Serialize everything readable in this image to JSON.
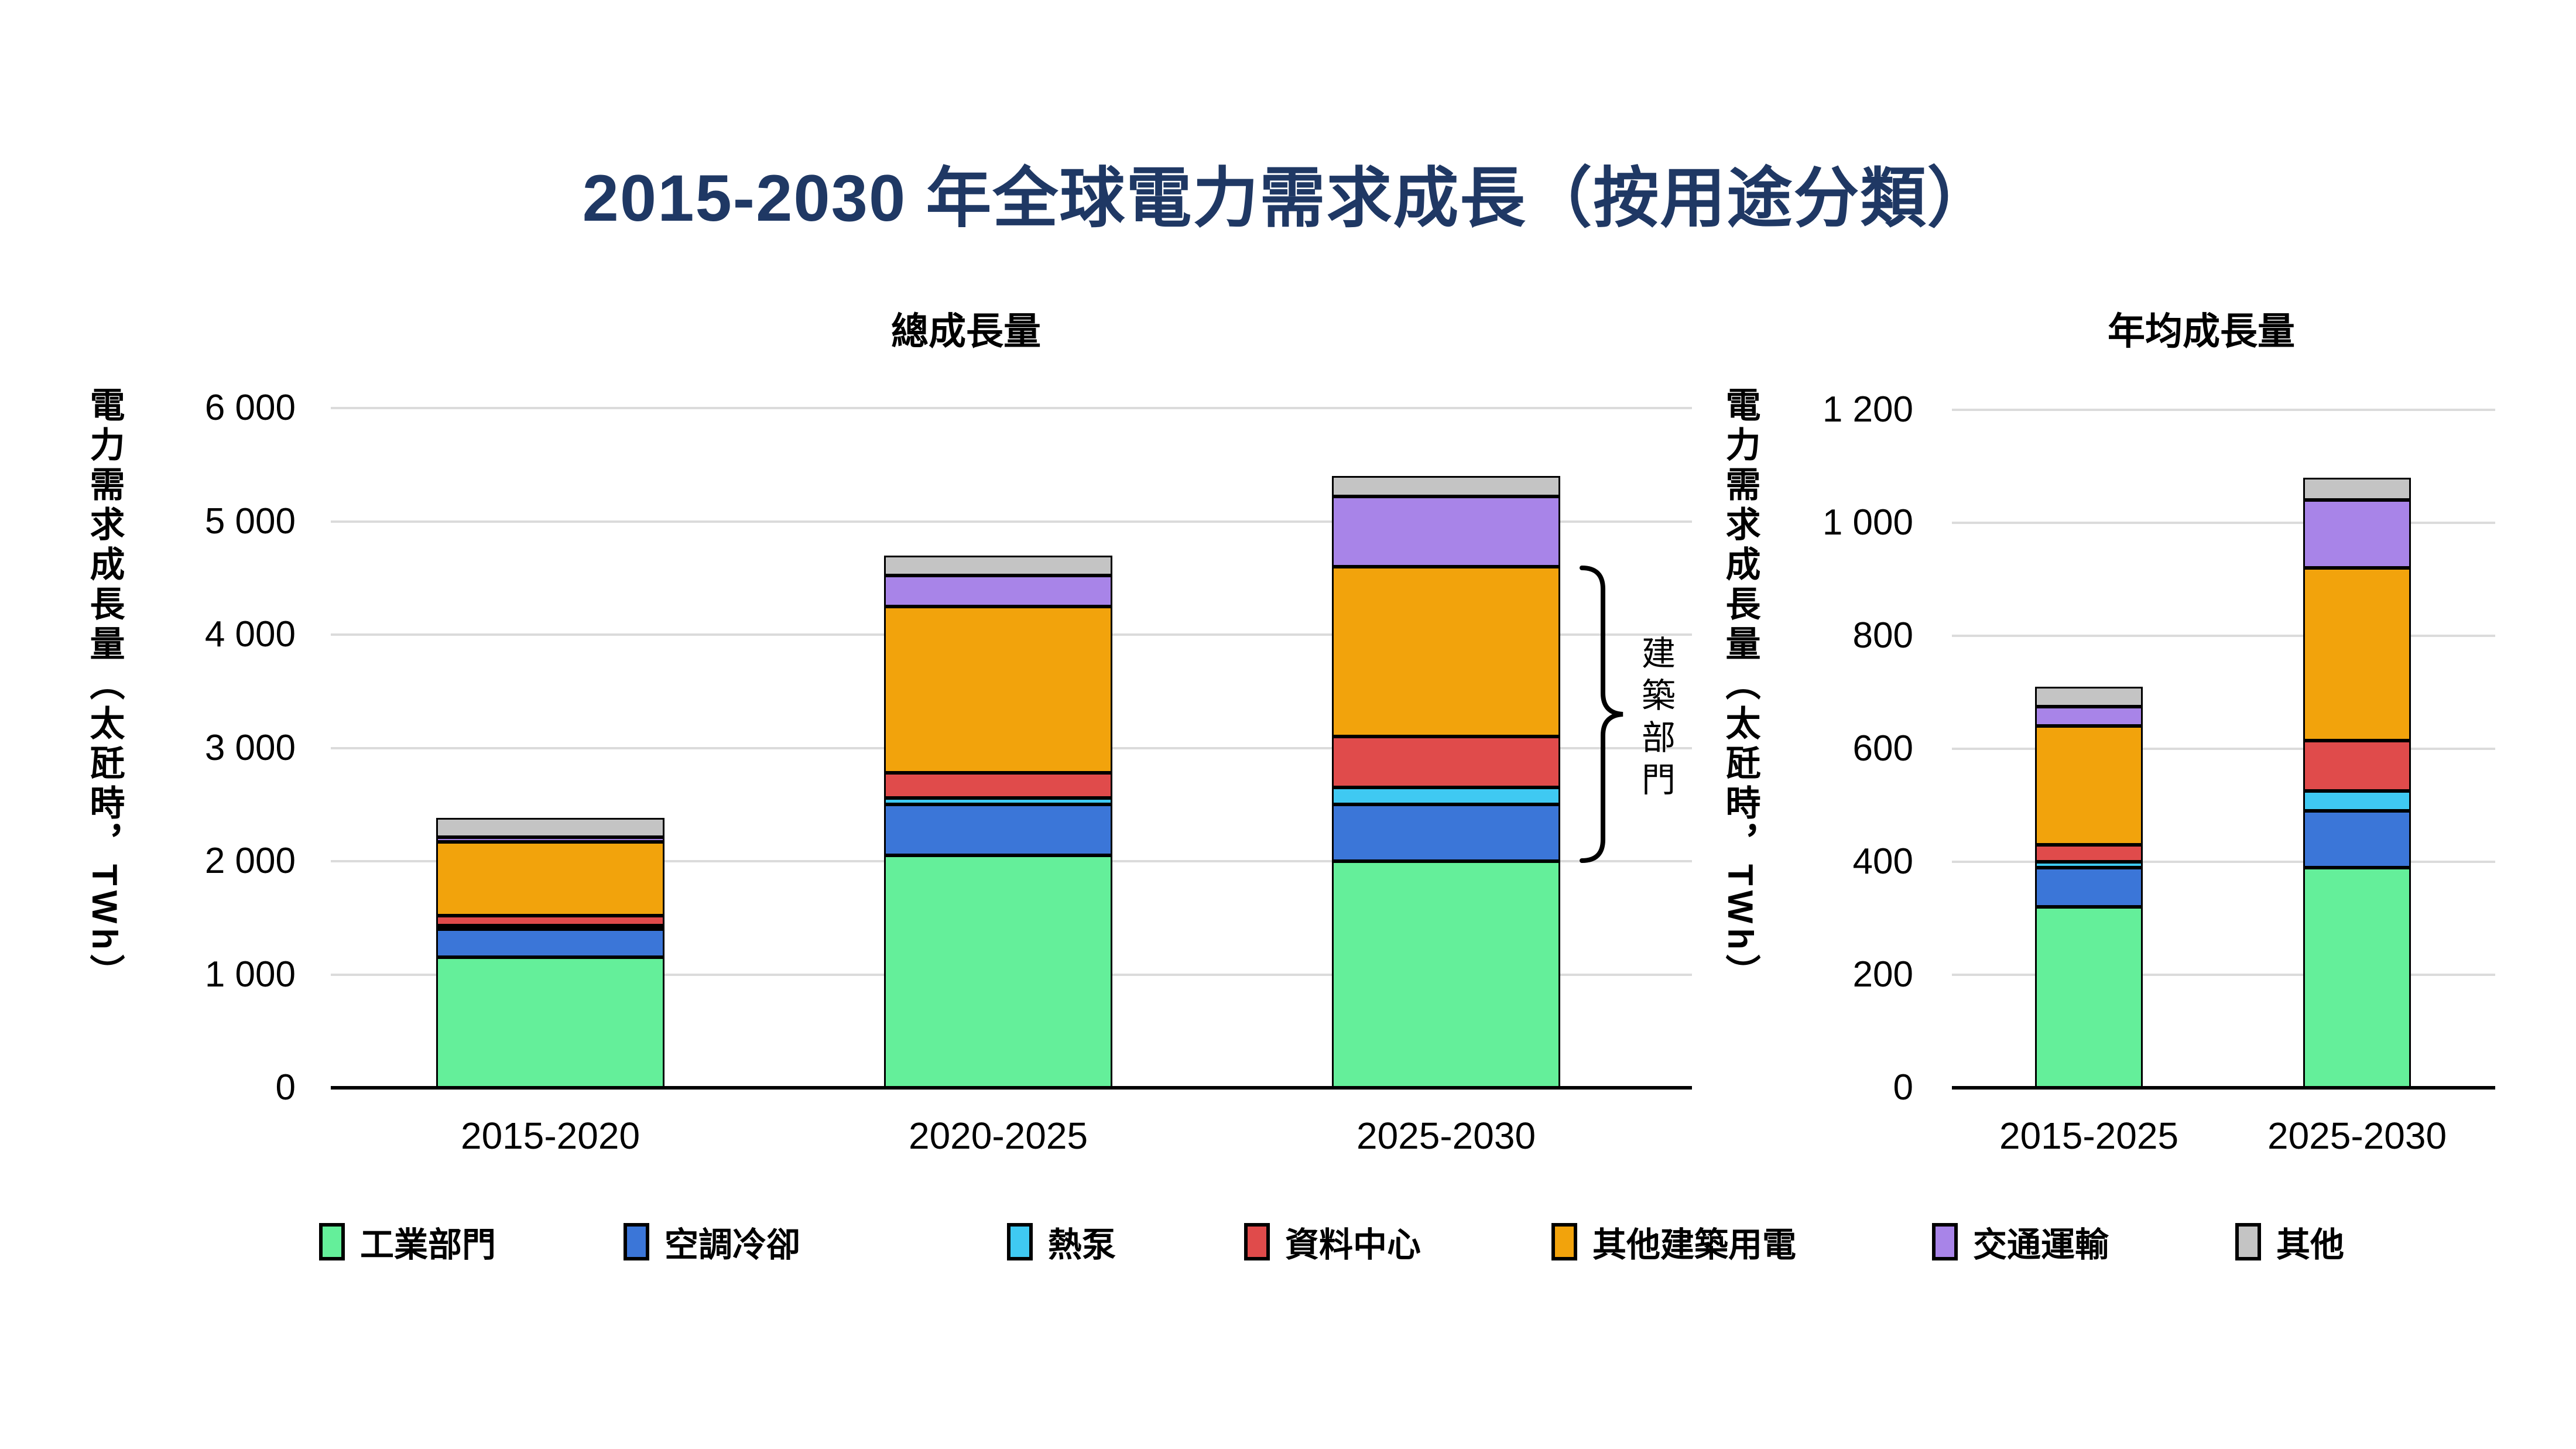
{
  "title": {
    "text": "2015-2030 年全球電力需求成長（按用途分類）",
    "color": "#1F3864"
  },
  "annotation": {
    "label": "建築部門"
  },
  "legend": [
    {
      "label": "工業部門",
      "color": "#64EF9A"
    },
    {
      "label": "空調冷卻",
      "color": "#3B76D8"
    },
    {
      "label": "熱泵",
      "color": "#3FC9F2"
    },
    {
      "label": "資料中心",
      "color": "#E04B4B"
    },
    {
      "label": "其他建築用電",
      "color": "#F2A30C"
    },
    {
      "label": "交通運輸",
      "color": "#A884E8"
    },
    {
      "label": "其他",
      "color": "#C4C4C4"
    }
  ],
  "chart_data": [
    {
      "type": "bar",
      "stacked": true,
      "title": "總成長量",
      "ylabel": "電力需求成長量（太瓩時，TWh）",
      "ylim": [
        0,
        6000
      ],
      "yticks": [
        "6 000",
        "5 000",
        "4 000",
        "3 000",
        "2 000",
        "1 000",
        "0"
      ],
      "ytick_values": [
        6000,
        5000,
        4000,
        3000,
        2000,
        1000,
        0
      ],
      "grid": true,
      "legend_position": "bottom",
      "categories": [
        "2015-2020",
        "2020-2025",
        "2025-2030"
      ],
      "series": [
        {
          "name": "工業部門",
          "color": "#64EF9A",
          "values": [
            1150,
            2050,
            2000
          ]
        },
        {
          "name": "空調冷卻",
          "color": "#3B76D8",
          "values": [
            250,
            450,
            500
          ]
        },
        {
          "name": "熱泵",
          "color": "#3FC9F2",
          "values": [
            30,
            60,
            150
          ]
        },
        {
          "name": "資料中心",
          "color": "#E04B4B",
          "values": [
            90,
            220,
            450
          ]
        },
        {
          "name": "其他建築用電",
          "color": "#F2A30C",
          "values": [
            650,
            1470,
            1500
          ]
        },
        {
          "name": "交通運輸",
          "color": "#A884E8",
          "values": [
            40,
            270,
            620
          ]
        },
        {
          "name": "其他",
          "color": "#C4C4C4",
          "values": [
            170,
            180,
            180
          ]
        }
      ],
      "totals": [
        2380,
        4700,
        5400
      ],
      "annotation": {
        "label": "建築部門",
        "bar": "2025-2030",
        "covers_series": [
          "空調冷卻",
          "熱泵",
          "資料中心",
          "其他建築用電"
        ],
        "value_range": [
          2000,
          4600
        ]
      }
    },
    {
      "type": "bar",
      "stacked": true,
      "title": "年均成長量",
      "ylabel": "電力需求成長量（太瓩時，TWh）",
      "ylim": [
        0,
        1200
      ],
      "yticks": [
        "1 200",
        "1 000",
        "800",
        "600",
        "400",
        "200",
        "0"
      ],
      "ytick_values": [
        1200,
        1000,
        800,
        600,
        400,
        200,
        0
      ],
      "grid": true,
      "categories": [
        "2015-2025",
        "2025-2030"
      ],
      "series": [
        {
          "name": "工業部門",
          "color": "#64EF9A",
          "values": [
            320,
            390
          ]
        },
        {
          "name": "空調冷卻",
          "color": "#3B76D8",
          "values": [
            70,
            100
          ]
        },
        {
          "name": "熱泵",
          "color": "#3FC9F2",
          "values": [
            10,
            35
          ]
        },
        {
          "name": "資料中心",
          "color": "#E04B4B",
          "values": [
            30,
            90
          ]
        },
        {
          "name": "其他建築用電",
          "color": "#F2A30C",
          "values": [
            210,
            305
          ]
        },
        {
          "name": "交通運輸",
          "color": "#A884E8",
          "values": [
            35,
            120
          ]
        },
        {
          "name": "其他",
          "color": "#C4C4C4",
          "values": [
            35,
            40
          ]
        }
      ],
      "totals": [
        710,
        1080
      ]
    }
  ]
}
